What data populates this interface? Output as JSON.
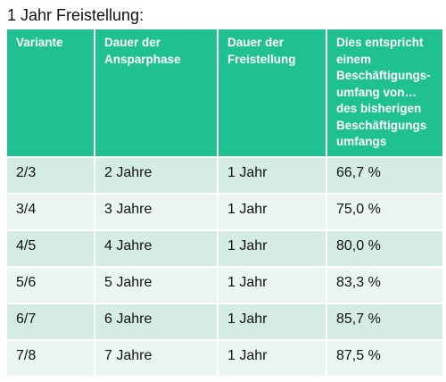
{
  "title": "1 Jahr Freistellung:",
  "headers": [
    "Variante",
    "Dauer der Ansparphase",
    "Dauer der Freistellung",
    "Dies entspricht einem Beschäftigungs-umfang von… des bisherigen Beschäftigungs umfangs"
  ],
  "rows": [
    [
      "2/3",
      "2 Jahre",
      "1 Jahr",
      "66,7 %"
    ],
    [
      "3/4",
      "3 Jahre",
      "1 Jahr",
      "75,0 %"
    ],
    [
      "4/5",
      "4 Jahre",
      "1 Jahr",
      "80,0 %"
    ],
    [
      "5/6",
      "5 Jahre",
      "1 Jahr",
      "83,3 %"
    ],
    [
      "6/7",
      "6 Jahre",
      "1 Jahr",
      "85,7 %"
    ],
    [
      "7/8",
      "7 Jahre",
      "1 Jahr",
      "87,5 %"
    ]
  ],
  "colors": {
    "header": "#1fc191",
    "row_dark": "#d5ece2",
    "row_light": "#ebf6f1"
  }
}
